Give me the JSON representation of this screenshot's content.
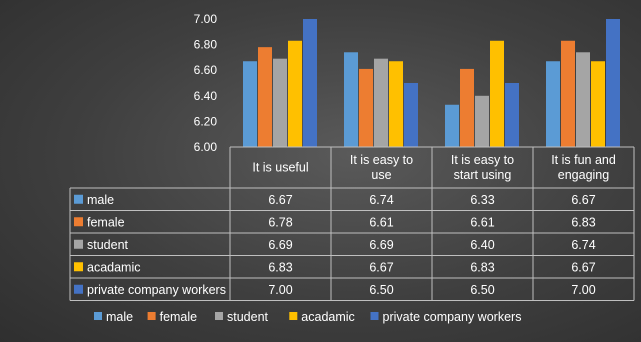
{
  "chart_data": {
    "type": "bar",
    "categories": [
      "It is useful",
      "It is easy to use",
      "It is easy to start using",
      "It is fun and engaging"
    ],
    "category_lines": [
      [
        "It is useful"
      ],
      [
        "It is easy to",
        "use"
      ],
      [
        "It is easy to",
        "start using"
      ],
      [
        "It is fun and",
        "engaging"
      ]
    ],
    "series": [
      {
        "name": "male",
        "color": "#5B9BD5",
        "values": [
          6.67,
          6.74,
          6.33,
          6.67
        ],
        "labels": [
          "6.67",
          "6.74",
          "6.33",
          "6.67"
        ]
      },
      {
        "name": "female",
        "color": "#ED7D31",
        "values": [
          6.78,
          6.61,
          6.61,
          6.83
        ],
        "labels": [
          "6.78",
          "6.61",
          "6.61",
          "6.83"
        ]
      },
      {
        "name": "student",
        "color": "#A5A5A5",
        "values": [
          6.69,
          6.69,
          6.4,
          6.74
        ],
        "labels": [
          "6.69",
          "6.69",
          "6.40",
          "6.74"
        ]
      },
      {
        "name": "acadamic",
        "color": "#FFC000",
        "values": [
          6.83,
          6.67,
          6.83,
          6.67
        ],
        "labels": [
          "6.83",
          "6.67",
          "6.83",
          "6.67"
        ]
      },
      {
        "name": "private company workers",
        "color": "#4472C4",
        "values": [
          7.0,
          6.5,
          6.5,
          7.0
        ],
        "labels": [
          "7.00",
          "6.50",
          "6.50",
          "7.00"
        ]
      }
    ],
    "y_ticks": [
      "7.00",
      "6.80",
      "6.60",
      "6.40",
      "6.20",
      "6.00"
    ],
    "ylim": [
      6.0,
      7.0
    ],
    "grid": false,
    "data_table": true,
    "legend_position": "bottom"
  }
}
